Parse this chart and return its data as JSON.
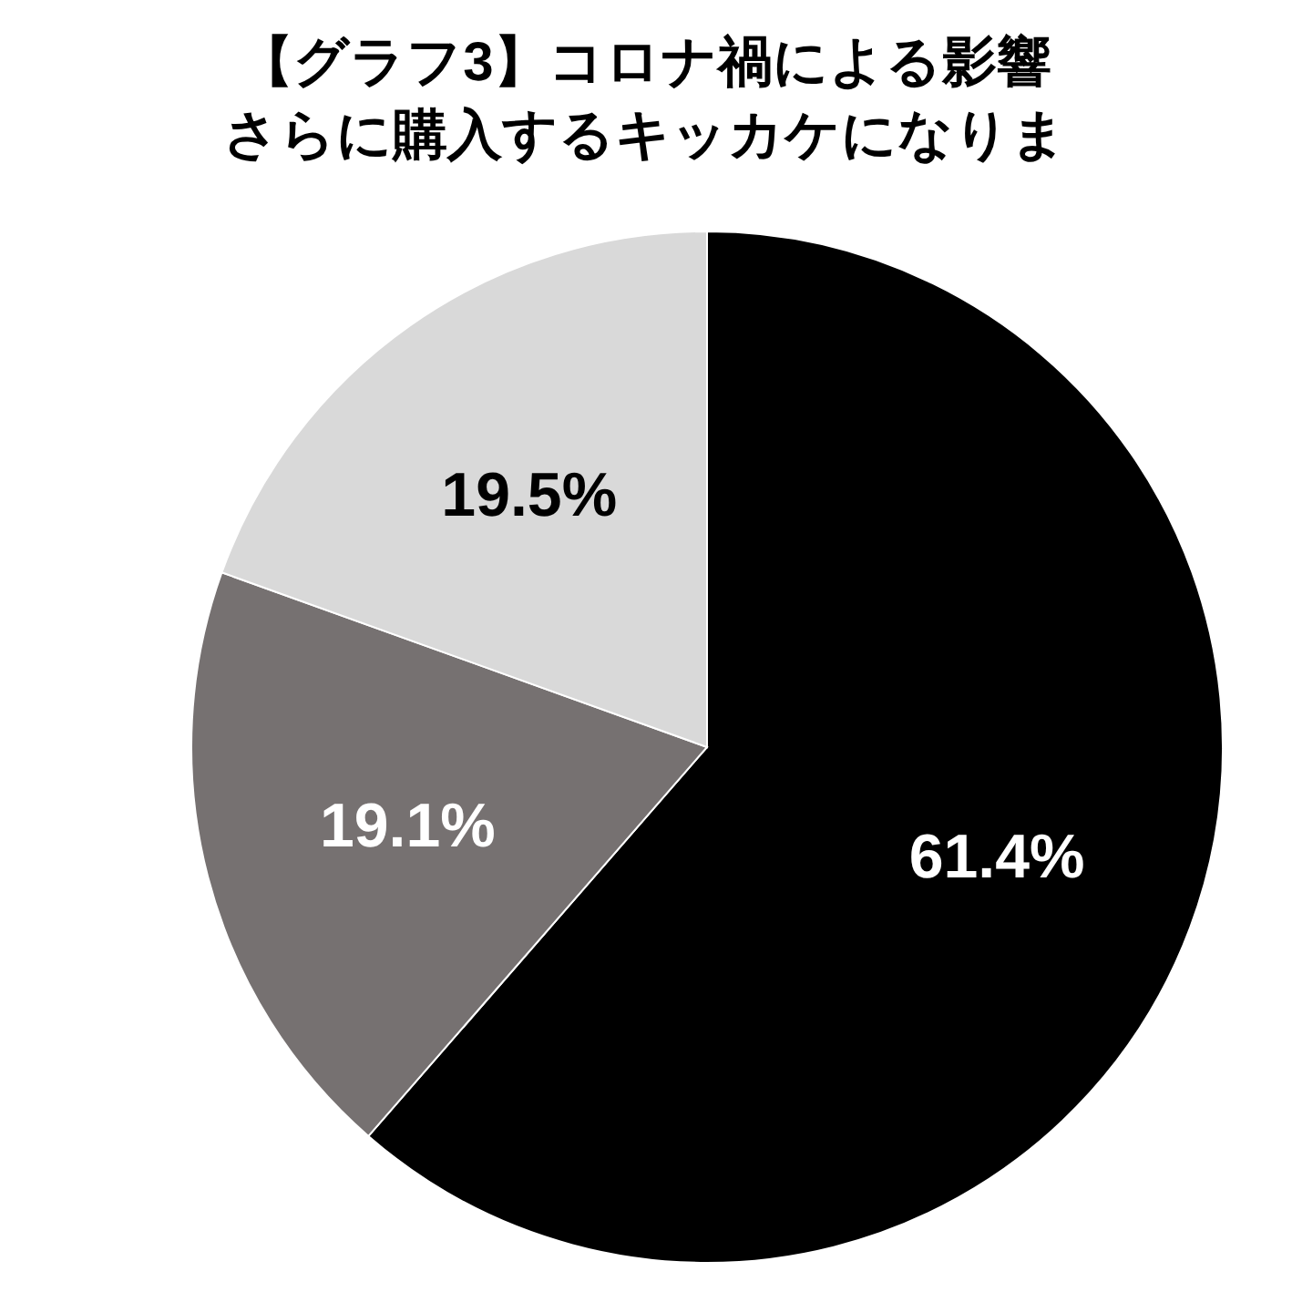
{
  "chart_data": {
    "type": "pie",
    "title": "【グラフ3】コロナ禍による影響",
    "subtitle": "さらに購入するキッカケになりま",
    "categories": [
      null,
      null,
      null
    ],
    "values": [
      61.4,
      19.1,
      19.5
    ],
    "colors": [
      "#000000",
      "#767171",
      "#d9d9d9"
    ],
    "value_labels": [
      "61.4%",
      "19.1%",
      "19.5%"
    ]
  }
}
